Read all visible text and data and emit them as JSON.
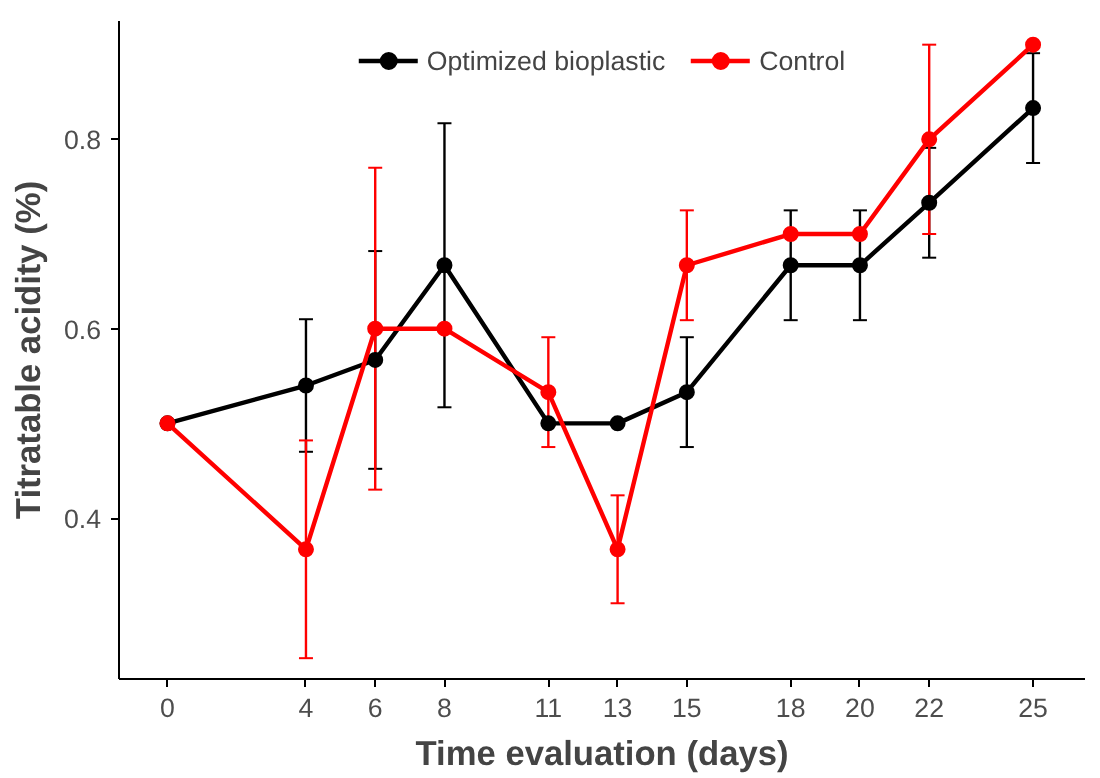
{
  "chart_data": {
    "type": "line",
    "xlabel": "Time evaluation (days)",
    "ylabel": "Titratable acidity (%)",
    "x": [
      0,
      4,
      6,
      8,
      11,
      13,
      15,
      18,
      20,
      22,
      25
    ],
    "xlim": [
      -1.4,
      26.5
    ],
    "xticks": [
      0,
      4,
      6,
      8,
      11,
      13,
      15,
      18,
      20,
      22,
      25
    ],
    "ylim": [
      0.23,
      0.925
    ],
    "yticks": [
      {
        "value": 0.4,
        "label": "0.4"
      },
      {
        "value": 0.6,
        "label": "0.6"
      },
      {
        "value": 0.8,
        "label": "0.8"
      }
    ],
    "grid": false,
    "legend": "top",
    "marker": "circle",
    "line_style": "solid",
    "series": [
      {
        "name": "Optimized bioplastic",
        "color": "#000000",
        "values": [
          0.5,
          0.54,
          0.567,
          0.667,
          0.5,
          0.5,
          0.533,
          0.667,
          0.667,
          0.733,
          0.833
        ],
        "errors": [
          null,
          0.07,
          0.115,
          0.15,
          null,
          null,
          0.058,
          0.058,
          0.058,
          0.058,
          0.058
        ]
      },
      {
        "name": "Control",
        "color": "#ff0000",
        "values": [
          0.5,
          0.367,
          0.6,
          0.6,
          0.533,
          0.367,
          0.667,
          0.7,
          0.7,
          0.8,
          0.9
        ],
        "errors": [
          null,
          0.115,
          0.17,
          null,
          0.058,
          0.057,
          0.058,
          null,
          null,
          0.1,
          null
        ]
      }
    ]
  }
}
